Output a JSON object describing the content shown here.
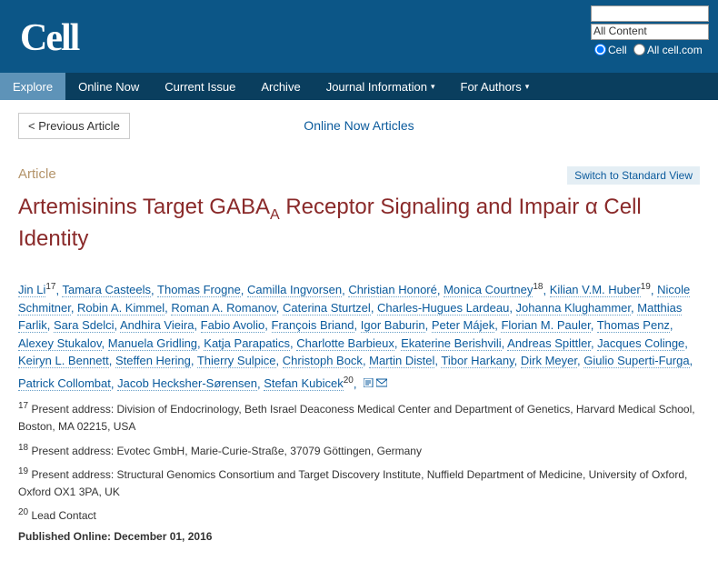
{
  "brand": {
    "logo": "Cell"
  },
  "search": {
    "placeholder": "",
    "dropdown_value": "All Content",
    "radio1_label": "Cell",
    "radio2_label": "All cell.com"
  },
  "nav": {
    "explore": "Explore",
    "online_now": "Online Now",
    "current_issue": "Current Issue",
    "archive": "Archive",
    "journal_info": "Journal Information",
    "for_authors": "For Authors"
  },
  "top": {
    "prev_article": "< Previous Article",
    "online_now_articles": "Online Now Articles"
  },
  "article": {
    "category": "Article",
    "switch_view": "Switch to Standard View",
    "title_pre": "Artemisinins Target GABA",
    "title_sub": "A",
    "title_post": " Receptor Signaling and Impair α Cell Identity",
    "authors_html": "Jin Li|17|, Tamara Casteels, Thomas Frogne, Camilla Ingvorsen, Christian Honoré, Monica Courtney|18|, Kilian V.M. Huber|19|, Nicole Schmitner, Robin A. Kimmel, Roman A. Romanov, Caterina Sturtzel, Charles-Hugues Lardeau, Johanna Klughammer, Matthias Farlik, Sara Sdelci, Andhira Vieira, Fabio Avolio, François Briand, Igor Baburin, Peter Májek, Florian M. Pauler, Thomas Penz, Alexey Stukalov, Manuela Gridling, Katja Parapatics, Charlotte Barbieux, Ekaterine Berishvili, Andreas Spittler, Jacques Colinge, Keiryn L. Bennett, Steffen Hering, Thierry Sulpice, Christoph Bock, Martin Distel, Tibor Harkany, Dirk Meyer, Giulio Superti-Furga, Patrick Collombat, Jacob Hecksher-Sørensen, Stefan Kubicek|20|",
    "note17": " Present address: Division of Endocrinology, Beth Israel Deaconess Medical Center and Department of Genetics, Harvard Medical School, Boston, MA 02215, USA",
    "note18": " Present address: Evotec GmbH, Marie-Curie-Straße, 37079 Göttingen, Germany",
    "note19": " Present address: Structural Genomics Consortium and Target Discovery Institute, Nuffield Department of Medicine, University of Oxford, Oxford OX1 3PA, UK",
    "note20": " Lead Contact",
    "pub_date": "Published Online: December 01, 2016"
  }
}
